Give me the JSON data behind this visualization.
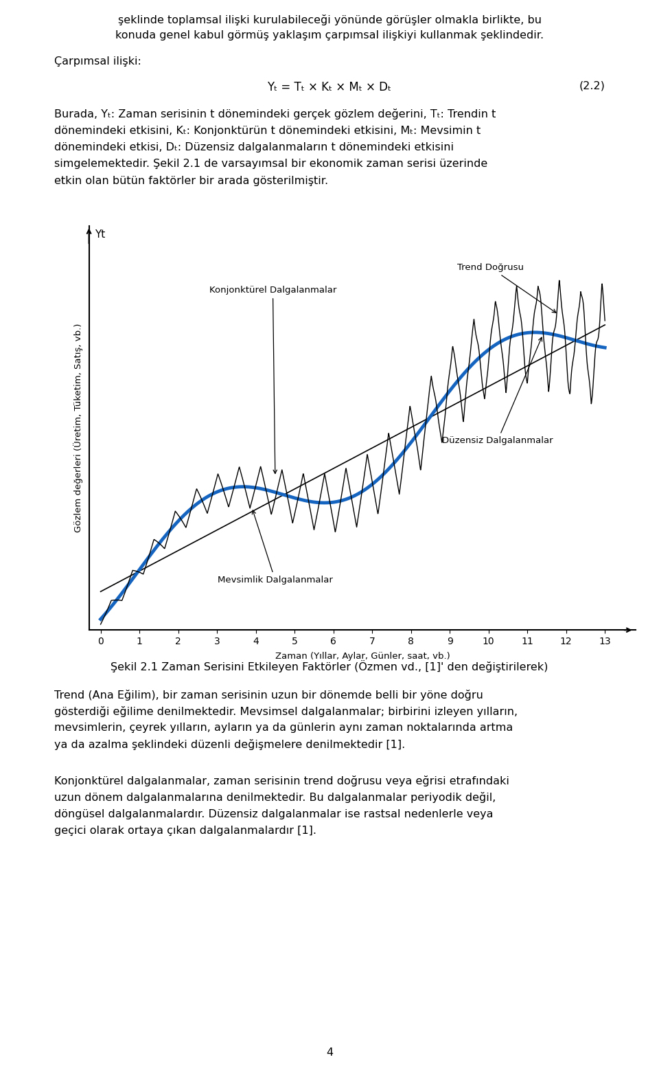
{
  "background_color": "#ffffff",
  "ylabel": "Gözlem değerleri (Üretim, Tüketim, Satış, vb.)",
  "xlabel": "Zaman (Yıllar, Aylar, Günler, saat, vb.)",
  "yt_label": "Yt",
  "trend_label": "Trend Doğrusu",
  "konjonk_label": "Konjonktürel Dalgalanmalar",
  "mevsim_label": "Mevsimlik Dalgalanmalar",
  "duzensiz_label": "Düzensiz Dalgalanmalar",
  "trend_color": "#1565C0",
  "fig_caption": "Şekil 2.1 Zaman Serisini Etkileyen Faktörler (Özmen vd., [1]' den değiştirilerek)",
  "top_line1": "şeklinde toplamsal ilişki kurulabileceği yönünde görüşler olmakla birlikte, bu",
  "top_line2": "konuda genel kabul görmüş yaklaşım çarpımsal ilişkiyi kullanmak şeklindedir.",
  "carpimsal_label": "Çarpımsal ilişki:",
  "formula": "Yt = Tt × Kt × Mt × Dt",
  "equation_num": "(2.2)",
  "burada_text": "Burada, Yt: Zaman serisinin t dönemindeki gerçek gözlem değerini, Tt: Trendin t dönemindeki etkisini, Kt: Konjonktürün t dönemindeki etkisini, Mt: Mevsimin t dönemindeki etkisi, Dt: Düzensiz dalgalanmaların t dönemindeki etkisini simgelemektedir. Şekil 2.1 de varsayımsal bir ekonomik zaman serisi üzerinde etkin olan bütün faktörler bir arada gösterilmiştir.",
  "para1": "Trend (Ana Eğilim), bir zaman serisinin uzun bir dönemde belli bir yöne doğru gösterdiği eğilime denilmektedir. Mevsimsel dalgalanmalar; birbirini izleyen yılların, mevsimlerin, çeyrek yılların, ayların ya da günlerin aynı zaman noktalarında artma ya da azalma şeklindeki düzenli değişmelere denilmektedir [1].",
  "para2": "Konjonktürel dalgalanmalar, zaman serisinin trend doğrusu veya eğrisi etrafındaki uzun dönem dalgalanmalarına denilmektedir. Bu dalgalanmalar periyodik değil, döngüsel dalgalanmalardır. Düzensiz dalgalanmalar ise rastsal nedenlerle veya geçici olarak ortaya çıkan dalgalanmalardır [1].",
  "page_num": "4",
  "fontsize_body": 11.5,
  "fontsize_chart": 9.5
}
